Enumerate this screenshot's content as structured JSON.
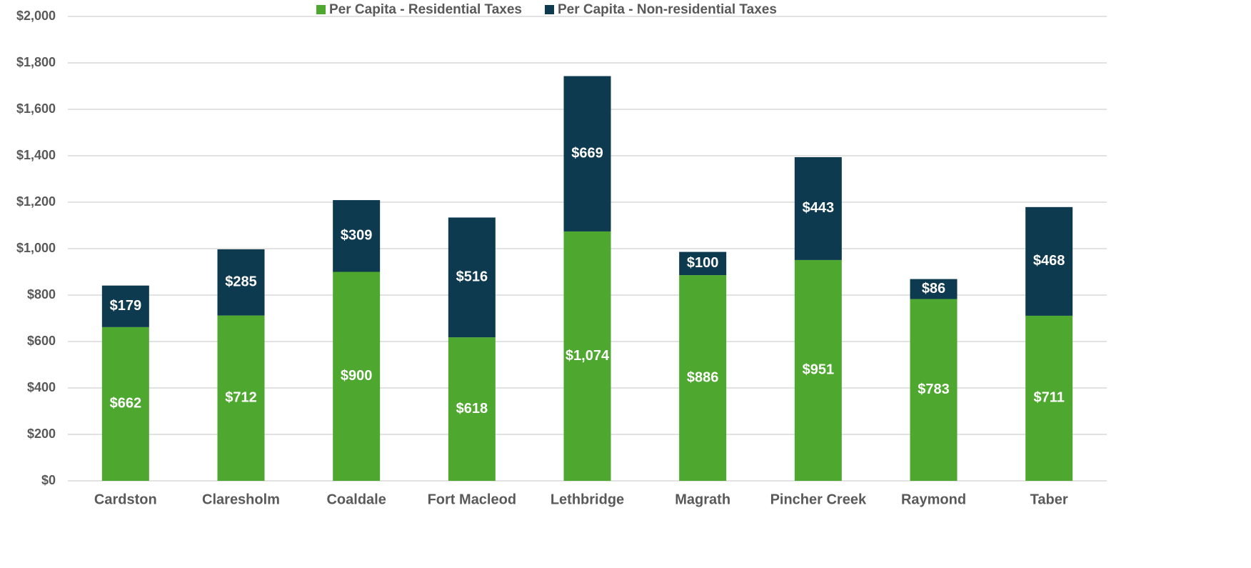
{
  "chart_data": {
    "type": "stacked_bar",
    "categories": [
      "Cardston",
      "Claresholm",
      "Coaldale",
      "Fort Macleod",
      "Lethbridge",
      "Magrath",
      "Pincher Creek",
      "Raymond",
      "Taber"
    ],
    "series": [
      {
        "name": "Per Capita - Residential Taxes",
        "color": "#4ea72e",
        "values": [
          662,
          712,
          900,
          618,
          1074,
          886,
          951,
          783,
          711
        ],
        "value_labels": [
          "$662",
          "$712",
          "$900",
          "$618",
          "$1,074",
          "$886",
          "$951",
          "$783",
          "$711"
        ]
      },
      {
        "name": "Per Capita - Non-residential Taxes",
        "color": "#0e3a4f",
        "values": [
          179,
          285,
          309,
          516,
          669,
          100,
          443,
          86,
          468
        ],
        "value_labels": [
          "$179",
          "$285",
          "$309",
          "$516",
          "$669",
          "$100",
          "$443",
          "$86",
          "$468"
        ]
      }
    ],
    "ylim": [
      0,
      2000
    ],
    "yticks": [
      {
        "value": 0,
        "label": "$0"
      },
      {
        "value": 200,
        "label": "$200"
      },
      {
        "value": 400,
        "label": "$400"
      },
      {
        "value": 600,
        "label": "$600"
      },
      {
        "value": 800,
        "label": "$800"
      },
      {
        "value": 1000,
        "label": "$1,000"
      },
      {
        "value": 1200,
        "label": "$1,200"
      },
      {
        "value": 1400,
        "label": "$1,400"
      },
      {
        "value": 1600,
        "label": "$1,600"
      },
      {
        "value": 1800,
        "label": "$1,800"
      },
      {
        "value": 2000,
        "label": "$2,000"
      }
    ],
    "grid": true,
    "legend": "top"
  }
}
